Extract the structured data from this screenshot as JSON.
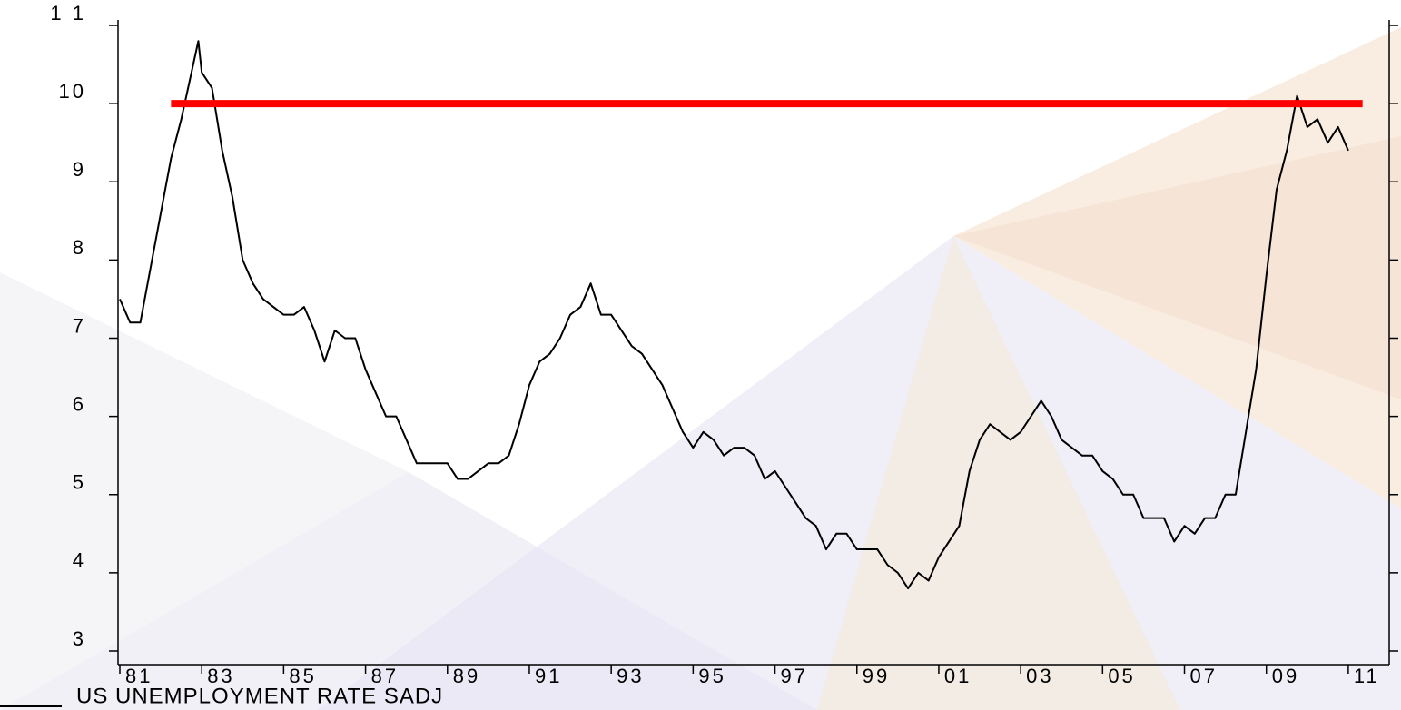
{
  "chart_data": {
    "type": "line",
    "title": "US UNEMPLOYMENT RATE SADJ",
    "xlim": [
      1981,
      2012
    ],
    "ylim": [
      3,
      11
    ],
    "xticks": [
      {
        "value": 1981,
        "label": "81"
      },
      {
        "value": 1983,
        "label": "83"
      },
      {
        "value": 1985,
        "label": "85"
      },
      {
        "value": 1987,
        "label": "87"
      },
      {
        "value": 1989,
        "label": "89"
      },
      {
        "value": 1991,
        "label": "91"
      },
      {
        "value": 1993,
        "label": "93"
      },
      {
        "value": 1995,
        "label": "95"
      },
      {
        "value": 1997,
        "label": "97"
      },
      {
        "value": 1999,
        "label": "99"
      },
      {
        "value": 2001,
        "label": "01"
      },
      {
        "value": 2003,
        "label": "03"
      },
      {
        "value": 2005,
        "label": "05"
      },
      {
        "value": 2007,
        "label": "07"
      },
      {
        "value": 2009,
        "label": "09"
      },
      {
        "value": 2011,
        "label": "11"
      }
    ],
    "yticks": [
      3,
      4,
      5,
      6,
      7,
      8,
      9,
      10,
      {
        "value": 11,
        "label": "1 1"
      }
    ],
    "series": [
      {
        "color": "#000000",
        "x": [
          1981,
          1981.25,
          1981.5,
          1981.75,
          1982,
          1982.25,
          1982.5,
          1982.75,
          1982.917,
          1983,
          1983.25,
          1983.5,
          1983.75,
          1984,
          1984.25,
          1984.5,
          1984.75,
          1985,
          1985.25,
          1985.5,
          1985.75,
          1986,
          1986.25,
          1986.5,
          1986.75,
          1987,
          1987.25,
          1987.5,
          1987.75,
          1988,
          1988.25,
          1988.5,
          1988.75,
          1989,
          1989.25,
          1989.5,
          1989.75,
          1990,
          1990.25,
          1990.5,
          1990.75,
          1991,
          1991.25,
          1991.5,
          1991.75,
          1992,
          1992.25,
          1992.5,
          1992.75,
          1993,
          1993.25,
          1993.5,
          1993.75,
          1994,
          1994.25,
          1994.5,
          1994.75,
          1995,
          1995.25,
          1995.5,
          1995.75,
          1996,
          1996.25,
          1996.5,
          1996.75,
          1997,
          1997.25,
          1997.5,
          1997.75,
          1998,
          1998.25,
          1998.5,
          1998.75,
          1999,
          1999.25,
          1999.5,
          1999.75,
          2000,
          2000.25,
          2000.5,
          2000.75,
          2001,
          2001.25,
          2001.5,
          2001.75,
          2002,
          2002.25,
          2002.5,
          2002.75,
          2003,
          2003.25,
          2003.5,
          2003.75,
          2004,
          2004.25,
          2004.5,
          2004.75,
          2005,
          2005.25,
          2005.5,
          2005.75,
          2006,
          2006.25,
          2006.5,
          2006.75,
          2007,
          2007.25,
          2007.5,
          2007.75,
          2008,
          2008.25,
          2008.5,
          2008.75,
          2009,
          2009.25,
          2009.5,
          2009.75,
          2010,
          2010.25,
          2010.5,
          2010.75,
          2011
        ],
        "values": [
          7.5,
          7.2,
          7.2,
          7.9,
          8.6,
          9.3,
          9.8,
          10.4,
          10.8,
          10.4,
          10.2,
          9.4,
          8.8,
          8.0,
          7.7,
          7.5,
          7.4,
          7.3,
          7.3,
          7.4,
          7.1,
          6.7,
          7.1,
          7.0,
          7.0,
          6.6,
          6.3,
          6.0,
          6.0,
          5.7,
          5.4,
          5.4,
          5.4,
          5.4,
          5.2,
          5.2,
          5.3,
          5.4,
          5.4,
          5.5,
          5.9,
          6.4,
          6.7,
          6.8,
          7.0,
          7.3,
          7.4,
          7.7,
          7.3,
          7.3,
          7.1,
          6.9,
          6.8,
          6.6,
          6.4,
          6.1,
          5.8,
          5.6,
          5.8,
          5.7,
          5.5,
          5.6,
          5.6,
          5.5,
          5.2,
          5.3,
          5.1,
          4.9,
          4.7,
          4.6,
          4.3,
          4.5,
          4.5,
          4.3,
          4.3,
          4.3,
          4.1,
          4.0,
          3.8,
          4.0,
          3.9,
          4.2,
          4.4,
          4.6,
          5.3,
          5.7,
          5.9,
          5.8,
          5.7,
          5.8,
          6.0,
          6.2,
          6.0,
          5.7,
          5.6,
          5.5,
          5.5,
          5.3,
          5.2,
          5.0,
          5.0,
          4.7,
          4.7,
          4.7,
          4.4,
          4.6,
          4.5,
          4.7,
          4.7,
          5.0,
          5.0,
          5.8,
          6.6,
          7.8,
          8.9,
          9.4,
          10.1,
          9.7,
          9.8,
          9.5,
          9.7,
          9.4
        ],
        "width": 2
      },
      {
        "color": "#ff0000",
        "x": [
          1982.25,
          2011.35
        ],
        "values": [
          10,
          10
        ],
        "width": 8
      }
    ]
  }
}
